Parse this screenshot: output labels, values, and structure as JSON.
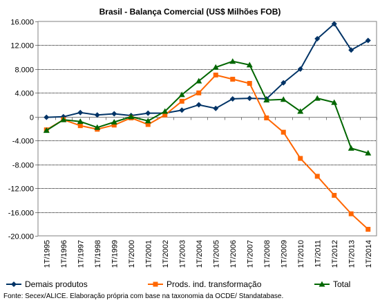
{
  "chart_data": {
    "type": "line",
    "title": "Brasil - Balança Comercial (US$ Milhões FOB)",
    "categories": [
      "1T/1995",
      "1T/1996",
      "1T/1997",
      "1T/1998",
      "1T/1999",
      "1T/2000",
      "1T/2001",
      "1T/2002",
      "1T/2003",
      "1T/2004",
      "1T/2005",
      "1T/2006",
      "1T/2007",
      "1T/2008",
      "1T/2009",
      "1T/2010",
      "1T/2011",
      "1T/2012",
      "1T/2013",
      "1T/2014"
    ],
    "ylim": [
      -20000,
      16000
    ],
    "yticks": [
      16000,
      12000,
      8000,
      4000,
      0,
      -4000,
      -8000,
      -12000,
      -16000,
      -20000
    ],
    "ytick_labels": [
      "16.000",
      "12.000",
      "8.000",
      "4.000",
      "0",
      "-4.000",
      "-8.000",
      "-12.000",
      "-16.000",
      "-20.000"
    ],
    "grid": true,
    "legend_position": "bottom",
    "series": [
      {
        "name": "Demais produtos",
        "color": "#003366",
        "marker": "diamond",
        "values": [
          -100,
          0,
          700,
          300,
          500,
          200,
          600,
          600,
          1100,
          2000,
          1400,
          3000,
          3100,
          3000,
          5700,
          8000,
          13100,
          15600,
          11200,
          12800
        ]
      },
      {
        "name": "Prods. ind. transformação",
        "color": "#FF6600",
        "marker": "square",
        "values": [
          -2200,
          -500,
          -1500,
          -2100,
          -1400,
          -200,
          -1300,
          300,
          2600,
          4000,
          7000,
          6300,
          5600,
          -200,
          -2600,
          -7000,
          -10000,
          -13200,
          -16300,
          -18900
        ]
      },
      {
        "name": "Total",
        "color": "#006600",
        "marker": "triangle",
        "values": [
          -2300,
          -500,
          -800,
          -1800,
          -900,
          0,
          -700,
          900,
          3700,
          6000,
          8300,
          9300,
          8700,
          2800,
          2900,
          900,
          3100,
          2400,
          -5300,
          -6100
        ]
      }
    ],
    "source": "Fonte: Secex/ALICE. Elaboração própria com base na taxonomia da OCDE/ Standatabase."
  }
}
